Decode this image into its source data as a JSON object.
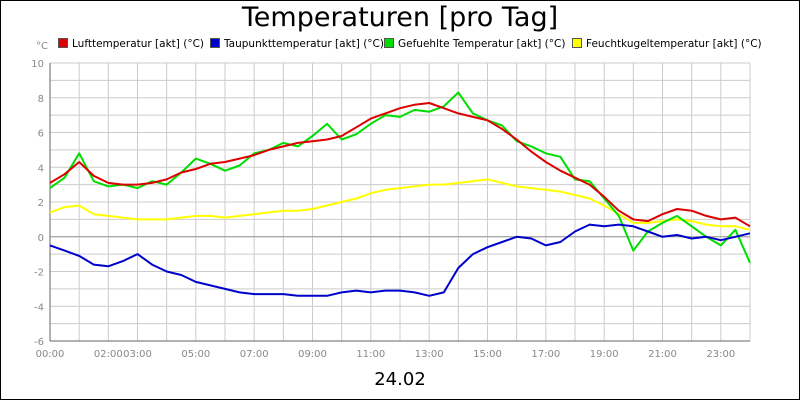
{
  "chart_data": {
    "type": "line",
    "title": "Temperaturen [pro Tag]",
    "ylabel": "°C",
    "xlabel": "24.02",
    "ylim": [
      -6,
      10
    ],
    "xlim": [
      0,
      24
    ],
    "grid": true,
    "legend_position": "top",
    "yticks": [
      "-6",
      "-4",
      "-2",
      "0",
      "2",
      "4",
      "6",
      "8",
      "10"
    ],
    "xticks": [
      {
        "h": 0,
        "label": "00:00"
      },
      {
        "h": 2,
        "label": "02:00"
      },
      {
        "h": 3,
        "label": "03:00"
      },
      {
        "h": 5,
        "label": "05:00"
      },
      {
        "h": 7,
        "label": "07:00"
      },
      {
        "h": 9,
        "label": "09:00"
      },
      {
        "h": 11,
        "label": "11:00"
      },
      {
        "h": 13,
        "label": "13:00"
      },
      {
        "h": 15,
        "label": "15:00"
      },
      {
        "h": 17,
        "label": "17:00"
      },
      {
        "h": 19,
        "label": "19:00"
      },
      {
        "h": 21,
        "label": "21:00"
      },
      {
        "h": 23,
        "label": "23:00"
      }
    ],
    "x": [
      0,
      0.5,
      1,
      1.5,
      2,
      2.5,
      3,
      3.5,
      4,
      4.5,
      5,
      5.5,
      6,
      6.5,
      7,
      7.5,
      8,
      8.5,
      9,
      9.5,
      10,
      10.5,
      11,
      11.5,
      12,
      12.5,
      13,
      13.5,
      14,
      14.5,
      15,
      15.5,
      16,
      16.5,
      17,
      17.5,
      18,
      18.5,
      19,
      19.5,
      20,
      20.5,
      21,
      21.5,
      22,
      22.5,
      23,
      23.5,
      24
    ],
    "series": [
      {
        "name": "Lufttemperatur [akt] (°C)",
        "color": "#dd0000",
        "values": [
          3.1,
          3.6,
          4.3,
          3.5,
          3.1,
          3.0,
          3.0,
          3.1,
          3.3,
          3.7,
          3.9,
          4.2,
          4.3,
          4.5,
          4.7,
          5.0,
          5.2,
          5.4,
          5.5,
          5.6,
          5.8,
          6.3,
          6.8,
          7.1,
          7.4,
          7.6,
          7.7,
          7.4,
          7.1,
          6.9,
          6.7,
          6.2,
          5.6,
          4.9,
          4.3,
          3.8,
          3.4,
          3.0,
          2.3,
          1.5,
          1.0,
          0.9,
          1.3,
          1.6,
          1.5,
          1.2,
          1.0,
          1.1,
          0.6
        ]
      },
      {
        "name": "Taupunkttemperatur [akt] (°C)",
        "color": "#0000cc",
        "values": [
          -0.5,
          -0.8,
          -1.1,
          -1.6,
          -1.7,
          -1.4,
          -1.0,
          -1.6,
          -2.0,
          -2.2,
          -2.6,
          -2.8,
          -3.0,
          -3.2,
          -3.3,
          -3.3,
          -3.3,
          -3.4,
          -3.4,
          -3.4,
          -3.2,
          -3.1,
          -3.2,
          -3.1,
          -3.1,
          -3.2,
          -3.4,
          -3.2,
          -1.8,
          -1.0,
          -0.6,
          -0.3,
          0.0,
          -0.1,
          -0.5,
          -0.3,
          0.3,
          0.7,
          0.6,
          0.7,
          0.6,
          0.3,
          0.0,
          0.1,
          -0.1,
          0.0,
          -0.2,
          0.0,
          0.2
        ]
      },
      {
        "name": "Gefuehlte Temperatur [akt] (°C)",
        "color": "#00dd00",
        "values": [
          2.8,
          3.4,
          4.8,
          3.2,
          2.9,
          3.0,
          2.8,
          3.2,
          3.0,
          3.7,
          4.5,
          4.2,
          3.8,
          4.1,
          4.8,
          5.0,
          5.4,
          5.2,
          5.8,
          6.5,
          5.6,
          5.9,
          6.5,
          7.0,
          6.9,
          7.3,
          7.2,
          7.5,
          8.3,
          7.1,
          6.7,
          6.4,
          5.5,
          5.2,
          4.8,
          4.6,
          3.3,
          3.2,
          2.2,
          1.2,
          -0.8,
          0.3,
          0.8,
          1.2,
          0.6,
          0.0,
          -0.5,
          0.4,
          -1.5
        ]
      },
      {
        "name": "Feuchtkugeltemperatur [akt] (°C)",
        "color": "#ffff00",
        "values": [
          1.4,
          1.7,
          1.8,
          1.3,
          1.2,
          1.1,
          1.0,
          1.0,
          1.0,
          1.1,
          1.2,
          1.2,
          1.1,
          1.2,
          1.3,
          1.4,
          1.5,
          1.5,
          1.6,
          1.8,
          2.0,
          2.2,
          2.5,
          2.7,
          2.8,
          2.9,
          3.0,
          3.0,
          3.1,
          3.2,
          3.3,
          3.1,
          2.9,
          2.8,
          2.7,
          2.6,
          2.4,
          2.2,
          1.8,
          1.3,
          0.8,
          0.8,
          0.9,
          1.0,
          0.9,
          0.7,
          0.6,
          0.6,
          0.4
        ]
      }
    ]
  }
}
